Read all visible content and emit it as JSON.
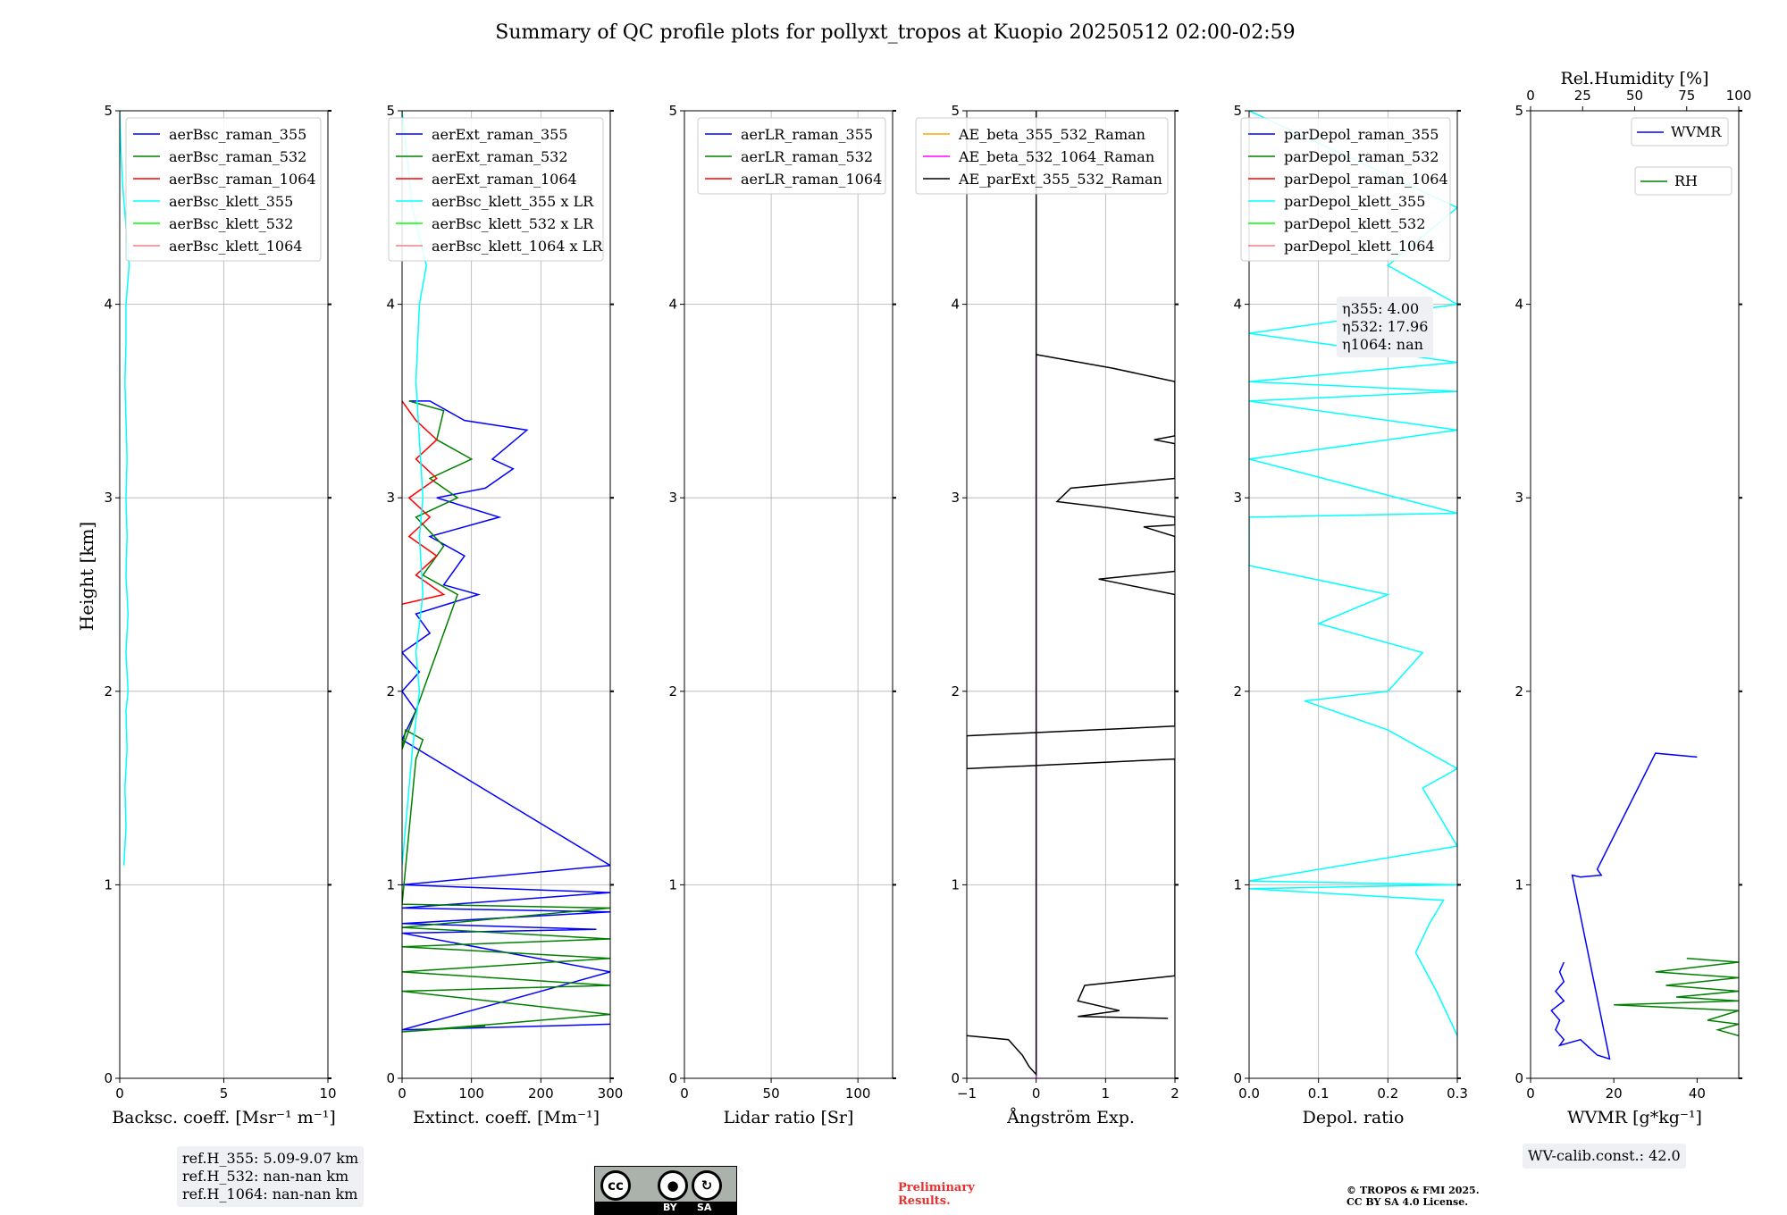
{
  "title": "Summary of QC profile plots for pollyxt_tropos at Kuopio 20250512 02:00-02:59",
  "ylabel": "Height [km]",
  "annotations": {
    "ref_heights": [
      "ref.H_355: 5.09-9.07 km",
      "ref.H_532: nan-nan km",
      "ref.H_1064: nan-nan km"
    ],
    "eta_labels": [
      "η355: 4.00",
      "η532: 17.96",
      "η1064: nan"
    ],
    "wv_calib": "WV-calib.const.: 42.0",
    "preliminary": [
      "Preliminary",
      "Results."
    ],
    "copyright": [
      "© TROPOS & FMI 2025.",
      "CC BY SA 4.0 License."
    ],
    "license_badge": {
      "by": "BY",
      "sa": "SA",
      "cc": "cc"
    }
  },
  "colors": {
    "blue": "#0000ff",
    "green": "#008000",
    "red": "#ff0000",
    "cyan": "#00ffff",
    "lime": "#00ff00",
    "salmon": "#f08080",
    "orange": "#ffa500",
    "magenta": "#ff00ff",
    "black": "#000000"
  },
  "chart_data": [
    {
      "type": "line",
      "xlabel": "Backsc. coeff. [Msr⁻¹ m⁻¹]",
      "xlim": [
        0,
        10
      ],
      "ylim": [
        0,
        5
      ],
      "xticks": [
        0,
        5,
        10
      ],
      "yticks": [
        0,
        1,
        2,
        3,
        4,
        5
      ],
      "grid": true,
      "legend": "top-right",
      "series": [
        {
          "name": "aerBsc_raman_355",
          "color": "blue",
          "points": []
        },
        {
          "name": "aerBsc_raman_532",
          "color": "green",
          "points": []
        },
        {
          "name": "aerBsc_raman_1064",
          "color": "red",
          "points": []
        },
        {
          "name": "aerBsc_klett_355",
          "color": "cyan",
          "points": [
            [
              0.2,
              1.1
            ],
            [
              0.3,
              1.3
            ],
            [
              0.25,
              1.5
            ],
            [
              0.35,
              1.7
            ],
            [
              0.3,
              1.9
            ],
            [
              0.4,
              2.0
            ],
            [
              0.3,
              2.2
            ],
            [
              0.4,
              2.4
            ],
            [
              0.3,
              2.6
            ],
            [
              0.35,
              2.8
            ],
            [
              0.3,
              3.0
            ],
            [
              0.35,
              3.2
            ],
            [
              0.3,
              3.4
            ],
            [
              0.25,
              3.6
            ],
            [
              0.3,
              3.8
            ],
            [
              0.3,
              4.0
            ],
            [
              0.45,
              4.2
            ],
            [
              0.3,
              4.4
            ],
            [
              0.15,
              4.6
            ],
            [
              0.05,
              4.8
            ],
            [
              0.0,
              5.0
            ]
          ]
        },
        {
          "name": "aerBsc_klett_532",
          "color": "lime",
          "points": []
        },
        {
          "name": "aerBsc_klett_1064",
          "color": "salmon",
          "points": []
        }
      ]
    },
    {
      "type": "line",
      "xlabel": "Extinct. coeff. [Mm⁻¹]",
      "xlim": [
        0,
        300
      ],
      "ylim": [
        0,
        5
      ],
      "xticks": [
        0,
        100,
        200,
        300
      ],
      "yticks": [
        0,
        1,
        2,
        3,
        4,
        5
      ],
      "grid": true,
      "legend": "top-right",
      "series": [
        {
          "name": "aerExt_raman_355",
          "color": "blue",
          "points": [
            [
              300,
              0.28
            ],
            [
              0,
              0.25
            ],
            [
              300,
              0.55
            ],
            [
              0,
              0.75
            ],
            [
              280,
              0.77
            ],
            [
              0,
              0.8
            ],
            [
              300,
              0.86
            ],
            [
              0,
              0.88
            ],
            [
              300,
              0.96
            ],
            [
              0,
              1.0
            ],
            [
              300,
              1.1
            ],
            [
              0,
              1.75
            ],
            [
              20,
              1.9
            ],
            [
              0,
              2.0
            ],
            [
              25,
              2.1
            ],
            [
              0,
              2.2
            ],
            [
              40,
              2.3
            ],
            [
              20,
              2.4
            ],
            [
              110,
              2.5
            ],
            [
              60,
              2.55
            ],
            [
              90,
              2.7
            ],
            [
              40,
              2.8
            ],
            [
              140,
              2.9
            ],
            [
              50,
              3.0
            ],
            [
              120,
              3.05
            ],
            [
              160,
              3.15
            ],
            [
              130,
              3.2
            ],
            [
              180,
              3.35
            ],
            [
              90,
              3.4
            ],
            [
              40,
              3.5
            ],
            [
              10,
              3.5
            ]
          ]
        },
        {
          "name": "aerExt_raman_532",
          "color": "green",
          "points": [
            [
              120,
              0.27
            ],
            [
              0,
              0.24
            ],
            [
              300,
              0.33
            ],
            [
              0,
              0.45
            ],
            [
              300,
              0.48
            ],
            [
              0,
              0.55
            ],
            [
              300,
              0.62
            ],
            [
              0,
              0.68
            ],
            [
              300,
              0.72
            ],
            [
              0,
              0.78
            ],
            [
              300,
              0.88
            ],
            [
              0,
              0.9
            ],
            [
              20,
              1.65
            ],
            [
              30,
              1.75
            ],
            [
              5,
              1.8
            ],
            [
              0,
              1.7
            ],
            [
              80,
              2.5
            ],
            [
              30,
              2.6
            ],
            [
              60,
              2.75
            ],
            [
              20,
              2.9
            ],
            [
              80,
              3.0
            ],
            [
              40,
              3.1
            ],
            [
              100,
              3.2
            ],
            [
              50,
              3.3
            ],
            [
              60,
              3.45
            ],
            [
              10,
              3.5
            ]
          ]
        },
        {
          "name": "aerExt_raman_1064",
          "color": "red",
          "points": [
            [
              0,
              2.45
            ],
            [
              60,
              2.5
            ],
            [
              20,
              2.6
            ],
            [
              50,
              2.7
            ],
            [
              10,
              2.8
            ],
            [
              40,
              2.9
            ],
            [
              10,
              3.0
            ],
            [
              50,
              3.1
            ],
            [
              20,
              3.2
            ],
            [
              50,
              3.3
            ],
            [
              20,
              3.4
            ],
            [
              0,
              3.5
            ]
          ]
        },
        {
          "name": "aerBsc_klett_355 x LR",
          "color": "cyan",
          "points": [
            [
              0,
              1.1
            ],
            [
              10,
              1.5
            ],
            [
              15,
              1.7
            ],
            [
              25,
              2.0
            ],
            [
              20,
              2.2
            ],
            [
              30,
              2.5
            ],
            [
              25,
              2.8
            ],
            [
              30,
              3.0
            ],
            [
              25,
              3.3
            ],
            [
              20,
              3.6
            ],
            [
              25,
              4.0
            ],
            [
              35,
              4.2
            ],
            [
              15,
              4.5
            ],
            [
              0,
              5.0
            ]
          ]
        },
        {
          "name": "aerBsc_klett_532 x LR",
          "color": "lime",
          "points": []
        },
        {
          "name": "aerBsc_klett_1064 x LR",
          "color": "salmon",
          "points": []
        }
      ]
    },
    {
      "type": "line",
      "xlabel": "Lidar ratio [Sr]",
      "xlim": [
        0,
        120
      ],
      "ylim": [
        0,
        5
      ],
      "xticks": [
        0,
        50,
        100
      ],
      "yticks": [
        0,
        1,
        2,
        3,
        4,
        5
      ],
      "grid": true,
      "legend": "top-right",
      "series": [
        {
          "name": "aerLR_raman_355",
          "color": "blue",
          "points": []
        },
        {
          "name": "aerLR_raman_532",
          "color": "green",
          "points": []
        },
        {
          "name": "aerLR_raman_1064",
          "color": "red",
          "points": []
        }
      ]
    },
    {
      "type": "line",
      "xlabel": "Ångström Exp.",
      "xlim": [
        -1,
        2
      ],
      "ylim": [
        0,
        5
      ],
      "xticks": [
        -1,
        0,
        1,
        2
      ],
      "yticks": [
        0,
        1,
        2,
        3,
        4,
        5
      ],
      "grid": true,
      "legend": "top-right",
      "series": [
        {
          "name": "AE_beta_355_532_Raman",
          "color": "orange",
          "points": []
        },
        {
          "name": "AE_beta_532_1064_Raman",
          "color": "magenta",
          "points": [
            [
              0,
              0
            ],
            [
              0,
              3.75
            ]
          ]
        },
        {
          "name": "AE_parExt_355_532_Raman",
          "color": "black",
          "points": [
            [
              -1,
              0.22
            ],
            [
              -0.4,
              0.2
            ],
            [
              -0.2,
              0.12
            ],
            [
              -0.1,
              0.06
            ],
            [
              0,
              0.02
            ],
            [
              0,
              5
            ],
            [
              0,
              3.74
            ],
            [
              1.1,
              3.67
            ],
            [
              2,
              3.6
            ],
            [
              2,
              3.32
            ],
            [
              1.7,
              3.3
            ],
            [
              2,
              3.28
            ],
            [
              2,
              3.1
            ],
            [
              0.5,
              3.05
            ],
            [
              0.3,
              2.98
            ],
            [
              1,
              2.95
            ],
            [
              2,
              2.9
            ],
            [
              2,
              2.86
            ],
            [
              1.55,
              2.85
            ],
            [
              2,
              2.8
            ],
            [
              2,
              2.62
            ],
            [
              0.9,
              2.58
            ],
            [
              2,
              2.5
            ],
            [
              2,
              1.82
            ],
            [
              -1,
              1.77
            ],
            [
              -1,
              1.6
            ],
            [
              2,
              1.65
            ],
            [
              2,
              0.53
            ],
            [
              0.7,
              0.48
            ],
            [
              0.6,
              0.4
            ],
            [
              1.2,
              0.35
            ],
            [
              0.6,
              0.32
            ],
            [
              1.9,
              0.31
            ]
          ]
        }
      ]
    },
    {
      "type": "line",
      "xlabel": "Depol. ratio",
      "xlim": [
        0,
        0.3
      ],
      "ylim": [
        0,
        5
      ],
      "xticks": [
        0.0,
        0.1,
        0.2,
        0.3
      ],
      "yticks": [
        0,
        1,
        2,
        3,
        4,
        5
      ],
      "grid": true,
      "legend": "top-right",
      "series": [
        {
          "name": "parDepol_raman_355",
          "color": "blue",
          "points": []
        },
        {
          "name": "parDepol_raman_532",
          "color": "green",
          "points": []
        },
        {
          "name": "parDepol_raman_1064",
          "color": "red",
          "points": []
        },
        {
          "name": "parDepol_klett_355",
          "color": "cyan",
          "points": [
            [
              0.3,
              0.22
            ],
            [
              0.27,
              0.45
            ],
            [
              0.24,
              0.65
            ],
            [
              0.26,
              0.8
            ],
            [
              0.28,
              0.92
            ],
            [
              0,
              0.98
            ],
            [
              0.3,
              1.0
            ],
            [
              0,
              1.02
            ],
            [
              0.3,
              1.2
            ],
            [
              0.25,
              1.5
            ],
            [
              0.3,
              1.6
            ],
            [
              0.2,
              1.8
            ],
            [
              0.08,
              1.95
            ],
            [
              0.2,
              2.0
            ],
            [
              0.25,
              2.2
            ],
            [
              0.1,
              2.35
            ],
            [
              0.2,
              2.5
            ],
            [
              0,
              2.65
            ],
            [
              0,
              2.9
            ],
            [
              0.3,
              2.92
            ],
            [
              0,
              3.2
            ],
            [
              0.3,
              3.35
            ],
            [
              0,
              3.5
            ],
            [
              0.3,
              3.55
            ],
            [
              0,
              3.6
            ],
            [
              0.3,
              3.7
            ],
            [
              0,
              3.85
            ],
            [
              0.3,
              4.0
            ],
            [
              0.2,
              4.2
            ],
            [
              0.3,
              4.5
            ],
            [
              0,
              5.0
            ]
          ]
        },
        {
          "name": "parDepol_klett_532",
          "color": "lime",
          "points": []
        },
        {
          "name": "parDepol_klett_1064",
          "color": "salmon",
          "points": []
        }
      ]
    },
    {
      "type": "line",
      "xlabel": "WVMR [g*kg⁻¹]",
      "x2label": "Rel.Humidity [%]",
      "xlim": [
        0,
        50
      ],
      "x2lim": [
        0,
        100
      ],
      "ylim": [
        0,
        5
      ],
      "xticks": [
        0,
        20,
        40
      ],
      "x2ticks": [
        0,
        25,
        50,
        75,
        100
      ],
      "yticks": [
        0,
        1,
        2,
        3,
        4,
        5
      ],
      "grid": false,
      "legend": "top-right",
      "series": [
        {
          "name": "WVMR",
          "color": "blue",
          "points": [
            [
              8,
              0.6
            ],
            [
              7,
              0.55
            ],
            [
              8,
              0.5
            ],
            [
              6,
              0.45
            ],
            [
              8,
              0.4
            ],
            [
              5,
              0.35
            ],
            [
              7,
              0.3
            ],
            [
              6,
              0.25
            ],
            [
              8,
              0.2
            ],
            [
              7,
              0.17
            ],
            [
              12,
              0.2
            ],
            [
              16,
              0.12
            ],
            [
              19,
              0.1
            ],
            [
              10,
              1.05
            ],
            [
              12,
              1.04
            ],
            [
              17,
              1.05
            ],
            [
              16,
              1.08
            ],
            [
              30,
              1.68
            ],
            [
              40,
              1.66
            ]
          ]
        },
        {
          "name": "RH",
          "color": "green",
          "points": [
            [
              75,
              0.62
            ],
            [
              100,
              0.6
            ],
            [
              60,
              0.55
            ],
            [
              100,
              0.52
            ],
            [
              65,
              0.48
            ],
            [
              100,
              0.45
            ],
            [
              70,
              0.42
            ],
            [
              100,
              0.4
            ],
            [
              40,
              0.38
            ],
            [
              100,
              0.35
            ],
            [
              85,
              0.3
            ],
            [
              100,
              0.28
            ],
            [
              90,
              0.25
            ],
            [
              100,
              0.22
            ]
          ]
        }
      ]
    }
  ]
}
